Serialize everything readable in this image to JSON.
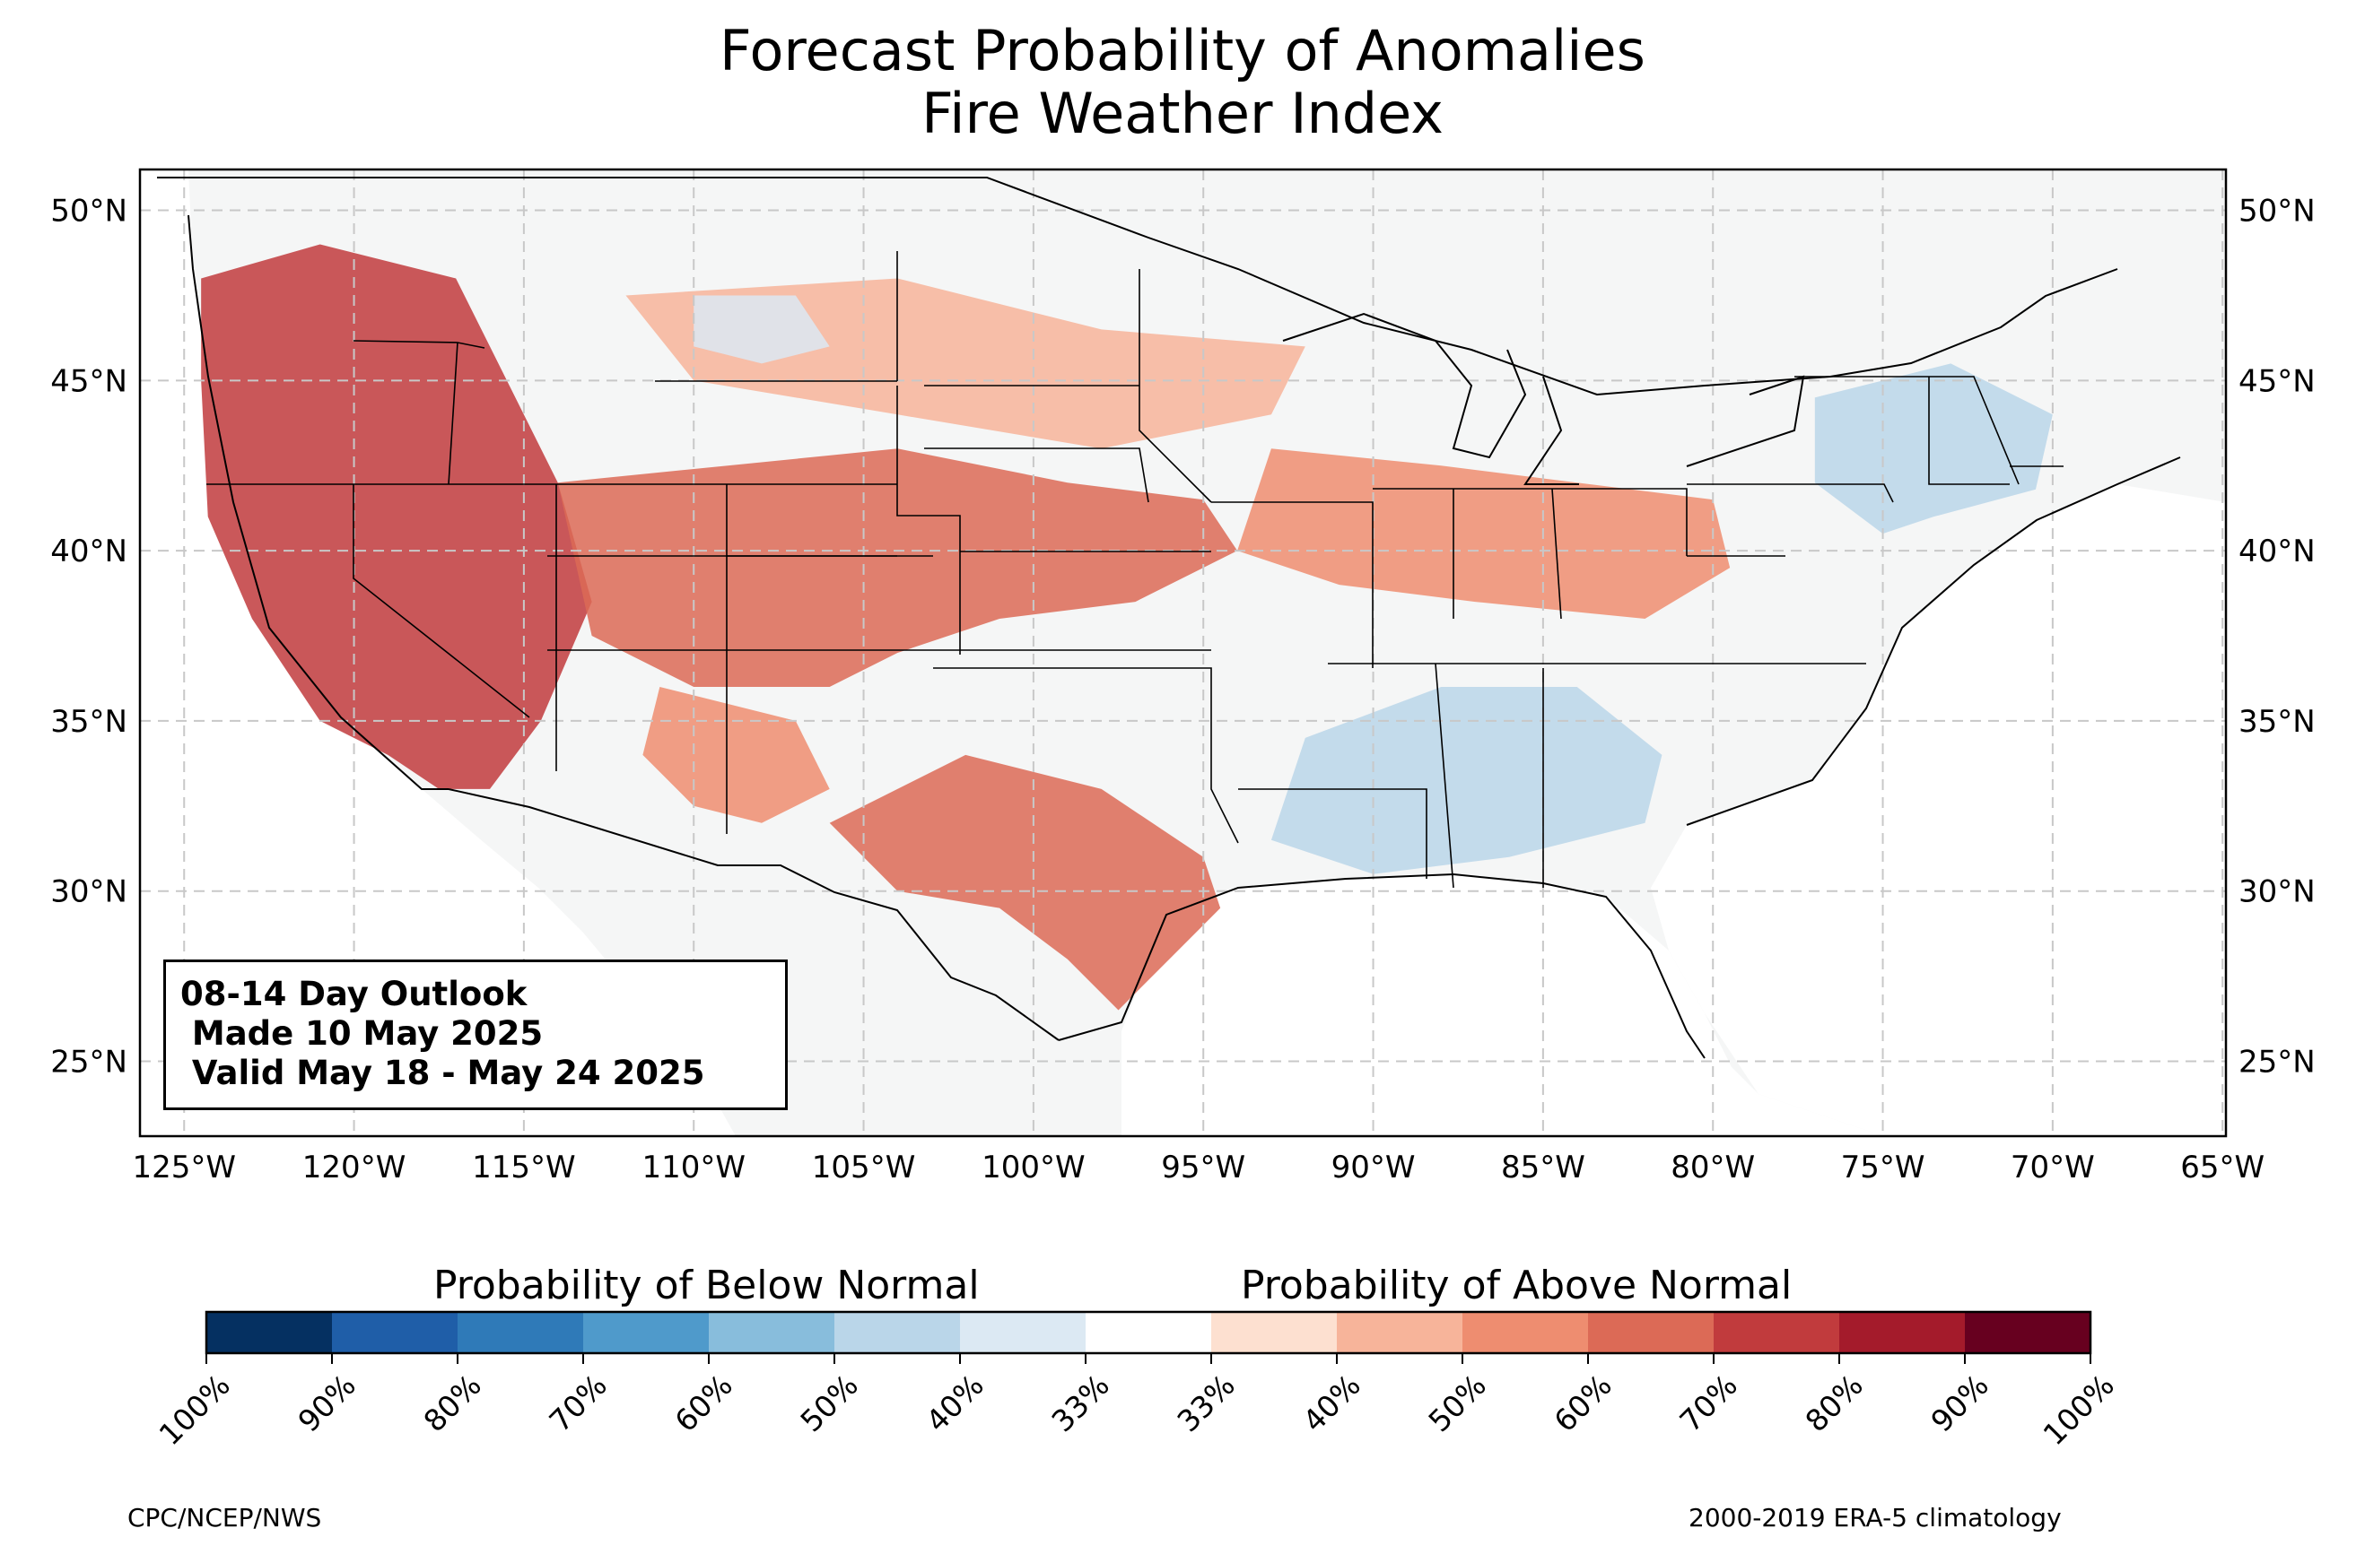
{
  "title": {
    "line1": "Forecast Probability of Anomalies",
    "line2": "Fire Weather Index"
  },
  "map": {
    "extent": {
      "lon": [
        -126.3,
        -64.9
      ],
      "lat": [
        22.8,
        51.2
      ]
    },
    "lat_ticks": [
      "50°N",
      "45°N",
      "40°N",
      "35°N",
      "30°N",
      "25°N"
    ],
    "lat_values": [
      50,
      45,
      40,
      35,
      30,
      25
    ],
    "lon_ticks": [
      "125°W",
      "120°W",
      "115°W",
      "110°W",
      "105°W",
      "100°W",
      "95°W",
      "90°W",
      "85°W",
      "80°W",
      "75°W",
      "70°W",
      "65°W"
    ],
    "lon_values": [
      -125,
      -120,
      -115,
      -110,
      -105,
      -100,
      -95,
      -90,
      -85,
      -80,
      -75,
      -70,
      -65
    ],
    "grid": true,
    "colors": {
      "land": "#f5f6f6",
      "ocean": "#ffffff",
      "border": "#000000",
      "gridline": "#c8c8c8"
    },
    "above_regions": [
      {
        "name": "West Coast / Great Basin",
        "level": 75,
        "points": [
          [
            -124.5,
            48
          ],
          [
            -121,
            49
          ],
          [
            -117,
            48
          ],
          [
            -115.5,
            45
          ],
          [
            -114,
            42
          ],
          [
            -113,
            38.5
          ],
          [
            -114.5,
            35
          ],
          [
            -116,
            33
          ],
          [
            -117.5,
            33
          ],
          [
            -119,
            34
          ],
          [
            -121,
            35
          ],
          [
            -123,
            38
          ],
          [
            -124.3,
            41
          ],
          [
            -124.5,
            45
          ]
        ]
      },
      {
        "name": "Central Rockies / Plains",
        "level": 60,
        "points": [
          [
            -114,
            42
          ],
          [
            -109,
            42.5
          ],
          [
            -104,
            43
          ],
          [
            -99,
            42
          ],
          [
            -95,
            41.5
          ],
          [
            -94,
            40
          ],
          [
            -97,
            38.5
          ],
          [
            -101,
            38
          ],
          [
            -104,
            37
          ],
          [
            -106,
            36
          ],
          [
            -110,
            36
          ],
          [
            -113,
            37.5
          ]
        ]
      },
      {
        "name": "Four Corners",
        "level": 55,
        "points": [
          [
            -111,
            36
          ],
          [
            -107,
            35
          ],
          [
            -106,
            33
          ],
          [
            -108,
            32
          ],
          [
            -110,
            32.5
          ],
          [
            -111.5,
            34
          ]
        ]
      },
      {
        "name": "Texas",
        "level": 65,
        "points": [
          [
            -106,
            32
          ],
          [
            -102,
            34
          ],
          [
            -98,
            33
          ],
          [
            -95,
            31
          ],
          [
            -94.5,
            29.5
          ],
          [
            -96,
            28
          ],
          [
            -97.5,
            26.5
          ],
          [
            -99,
            28
          ],
          [
            -101,
            29.5
          ],
          [
            -104,
            30
          ]
        ]
      },
      {
        "name": "Midwest / Ohio Valley",
        "level": 50,
        "points": [
          [
            -93,
            43
          ],
          [
            -88,
            42.5
          ],
          [
            -84,
            42
          ],
          [
            -80,
            41.5
          ],
          [
            -79.5,
            39.5
          ],
          [
            -82,
            38
          ],
          [
            -87,
            38.5
          ],
          [
            -91,
            39
          ],
          [
            -94,
            40
          ]
        ]
      },
      {
        "name": "Northern Plains",
        "level": 40,
        "points": [
          [
            -112,
            47.5
          ],
          [
            -104,
            48
          ],
          [
            -98,
            46.5
          ],
          [
            -92,
            46
          ],
          [
            -93,
            44
          ],
          [
            -98,
            43
          ],
          [
            -104,
            44
          ],
          [
            -110,
            45
          ]
        ]
      }
    ],
    "below_regions": [
      {
        "name": "Northeast",
        "level": 55,
        "points": [
          [
            -77,
            44.5
          ],
          [
            -73,
            45.5
          ],
          [
            -70,
            44
          ],
          [
            -70.5,
            41.8
          ],
          [
            -73.5,
            41
          ],
          [
            -75,
            40.5
          ],
          [
            -77,
            42
          ]
        ]
      },
      {
        "name": "Southeast",
        "level": 50,
        "points": [
          [
            -92,
            34.5
          ],
          [
            -88,
            36
          ],
          [
            -84,
            36
          ],
          [
            -81.5,
            34
          ],
          [
            -82,
            32
          ],
          [
            -86,
            31
          ],
          [
            -90,
            30.5
          ],
          [
            -93,
            31.5
          ]
        ]
      },
      {
        "name": "Montana",
        "level": 40,
        "points": [
          [
            -110,
            47.5
          ],
          [
            -107,
            47.5
          ],
          [
            -106,
            46
          ],
          [
            -108,
            45.5
          ],
          [
            -110,
            46
          ]
        ]
      }
    ]
  },
  "outlook": {
    "line1": "08-14 Day Outlook",
    "line2": " Made 10 May 2025",
    "line3": " Valid May 18 - May 24 2025"
  },
  "colorbar": {
    "below_title": "Probability of Below Normal",
    "above_title": "Probability of Above Normal",
    "colors": [
      "#053061",
      "#1f5ea8",
      "#2f7ab8",
      "#4f9acb",
      "#88bddc",
      "#bad6e9",
      "#dce9f3",
      "#ffffff",
      "#fde0d0",
      "#f7b49a",
      "#ee8d70",
      "#dc6a56",
      "#c13b3d",
      "#a41b2b",
      "#67001f"
    ],
    "labels": [
      "100%",
      "90%",
      "80%",
      "70%",
      "60%",
      "50%",
      "40%",
      "33%",
      "33%",
      "40%",
      "50%",
      "60%",
      "70%",
      "80%",
      "90%",
      "100%"
    ]
  },
  "footer": {
    "left": "CPC/NCEP/NWS",
    "right": "2000-2019 ERA-5 climatology"
  }
}
